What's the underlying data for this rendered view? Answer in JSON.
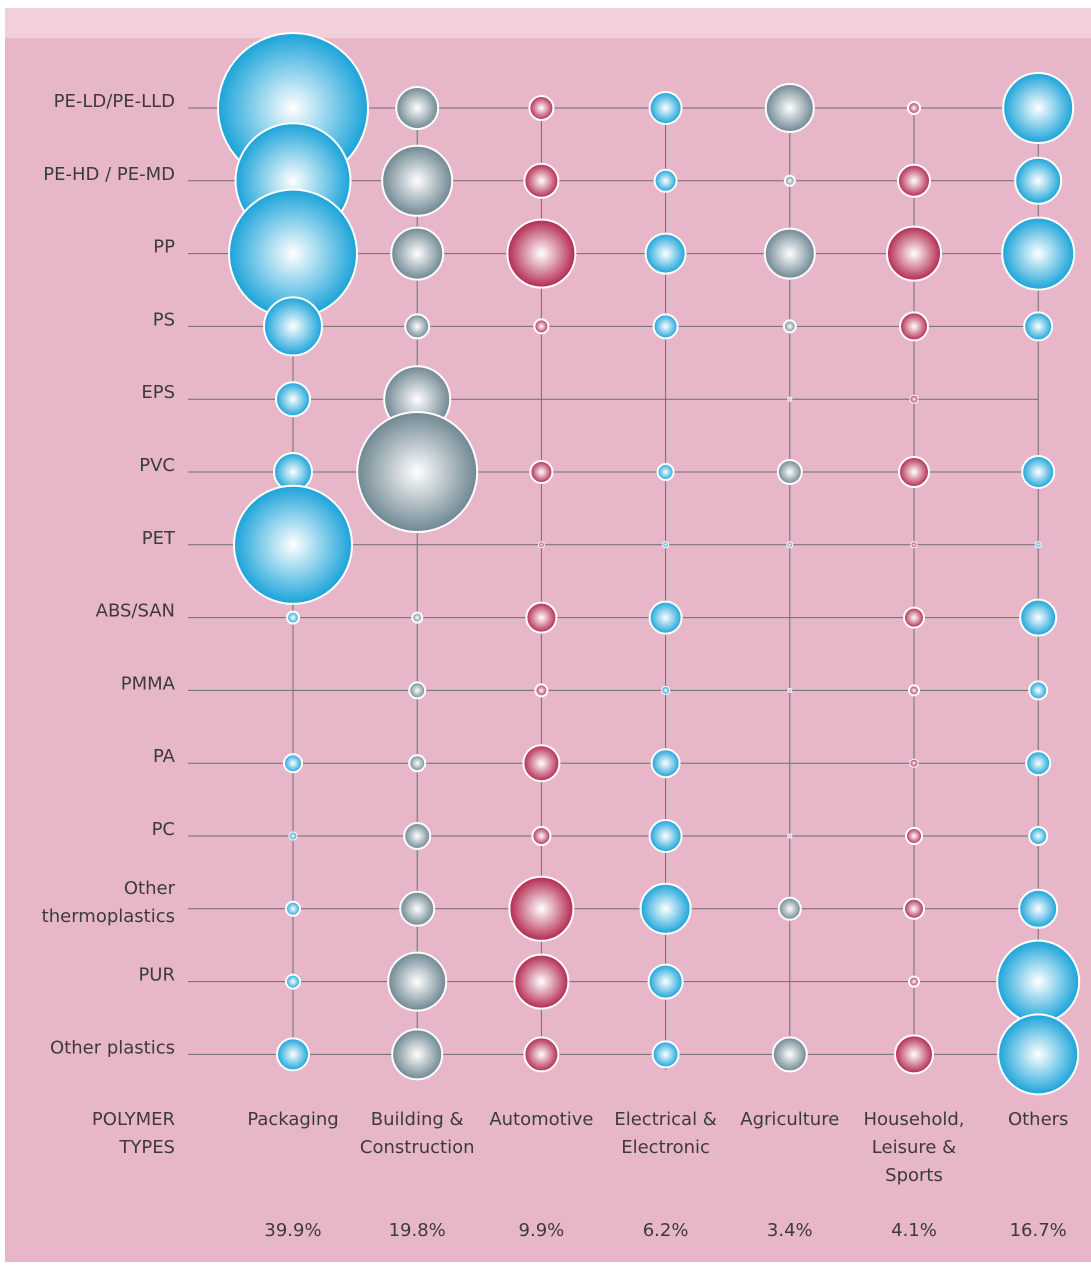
{
  "chart_data": {
    "type": "bubble-matrix",
    "axis_title": [
      "POLYMER",
      "TYPES"
    ],
    "columns": [
      {
        "label": [
          "Packaging"
        ],
        "color": "#1aa3d9",
        "share": 39.9,
        "share_label": "39.9%"
      },
      {
        "label": [
          "Building &",
          "Construction"
        ],
        "color": "#6f8792",
        "share": 19.8,
        "share_label": "19.8%"
      },
      {
        "label": [
          "Automotive"
        ],
        "color": "#b3284f",
        "share": 9.9,
        "share_label": "9.9%"
      },
      {
        "label": [
          "Electrical &",
          "Electronic"
        ],
        "color": "#1aa3d9",
        "share": 6.2,
        "share_label": "6.2%"
      },
      {
        "label": [
          "Agriculture"
        ],
        "color": "#6f8792",
        "share": 3.4,
        "share_label": "3.4%"
      },
      {
        "label": [
          "Household,",
          "Leisure &",
          "Sports"
        ],
        "color": "#b3284f",
        "share": 4.1,
        "share_label": "4.1%"
      },
      {
        "label": [
          "Others"
        ],
        "color": "#1aa3d9",
        "share": 16.7,
        "share_label": "16.7%"
      }
    ],
    "rows": [
      {
        "label": [
          "PE-LD/PE-LLD"
        ],
        "values": [
          150,
          42,
          24,
          32,
          48,
          12,
          70
        ]
      },
      {
        "label": [
          "PE-HD / PE-MD"
        ],
        "values": [
          115,
          70,
          34,
          22,
          10,
          32,
          46
        ]
      },
      {
        "label": [
          "PP"
        ],
        "values": [
          128,
          52,
          68,
          40,
          50,
          54,
          72
        ]
      },
      {
        "label": [
          "PS"
        ],
        "values": [
          58,
          24,
          14,
          24,
          12,
          28,
          28
        ]
      },
      {
        "label": [
          "EPS"
        ],
        "values": [
          34,
          66,
          null,
          null,
          4,
          8,
          null
        ]
      },
      {
        "label": [
          "PVC"
        ],
        "values": [
          38,
          120,
          22,
          16,
          24,
          30,
          32
        ]
      },
      {
        "label": [
          "PET"
        ],
        "values": [
          118,
          null,
          6,
          6,
          6,
          6,
          6
        ]
      },
      {
        "label": [
          "ABS/SAN"
        ],
        "values": [
          12,
          10,
          30,
          32,
          null,
          20,
          36
        ]
      },
      {
        "label": [
          "PMMA"
        ],
        "values": [
          null,
          16,
          12,
          8,
          4,
          10,
          18
        ]
      },
      {
        "label": [
          "PA"
        ],
        "values": [
          18,
          16,
          36,
          28,
          null,
          8,
          24
        ]
      },
      {
        "label": [
          "PC"
        ],
        "values": [
          8,
          26,
          18,
          32,
          4,
          16,
          18
        ]
      },
      {
        "label": [
          "Other",
          "thermoplastics"
        ],
        "values": [
          14,
          34,
          64,
          50,
          22,
          20,
          38
        ]
      },
      {
        "label": [
          "PUR"
        ],
        "values": [
          14,
          58,
          54,
          34,
          null,
          10,
          82
        ]
      },
      {
        "label": [
          "Other plastics"
        ],
        "values": [
          32,
          50,
          34,
          26,
          34,
          38,
          80
        ]
      }
    ]
  }
}
